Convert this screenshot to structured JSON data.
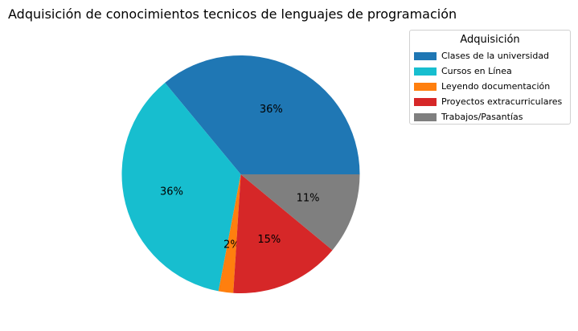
{
  "chart_data": {
    "type": "pie",
    "title": "Adquisición de conocimientos tecnicos de lenguajes de programación",
    "legend_title": "Adquisición",
    "legend_position": "upper-right, outside",
    "start_angle": 0,
    "direction": "counterclockwise",
    "slices": [
      {
        "label": "Clases de la universidad",
        "value": 36,
        "pct_label": "36%",
        "color": "#1f77b4"
      },
      {
        "label": "Cursos en Línea",
        "value": 36,
        "pct_label": "36%",
        "color": "#17becf"
      },
      {
        "label": "Leyendo documentación",
        "value": 2,
        "pct_label": "2%",
        "color": "#ff7f0e"
      },
      {
        "label": "Proyectos extracurriculares",
        "value": 15,
        "pct_label": "15%",
        "color": "#d62728"
      },
      {
        "label": "Trabajos/Pasantías",
        "value": 11,
        "pct_label": "11%",
        "color": "#7f7f7f"
      }
    ]
  }
}
